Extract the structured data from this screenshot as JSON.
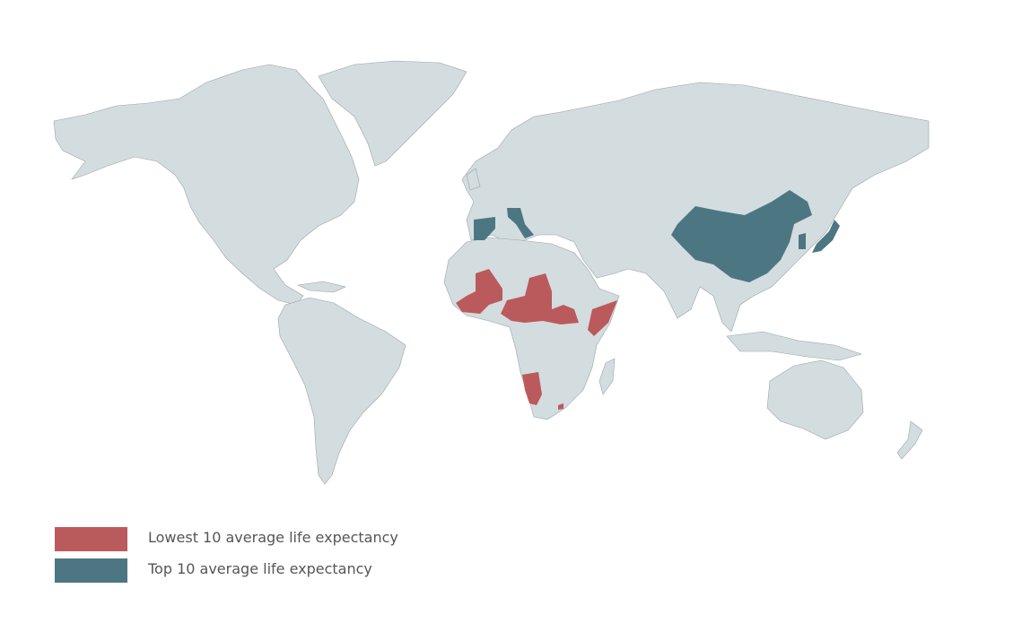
{
  "map": {
    "type": "choropleth world map",
    "land_color": "#d3dcdf",
    "border_color": "#9aa5a9"
  },
  "legend": {
    "items": [
      {
        "label": "Lowest 10 average life expectancy",
        "color": "#bb5a5c"
      },
      {
        "label": "Top 10 average life expectancy",
        "color": "#4d7683"
      }
    ]
  }
}
